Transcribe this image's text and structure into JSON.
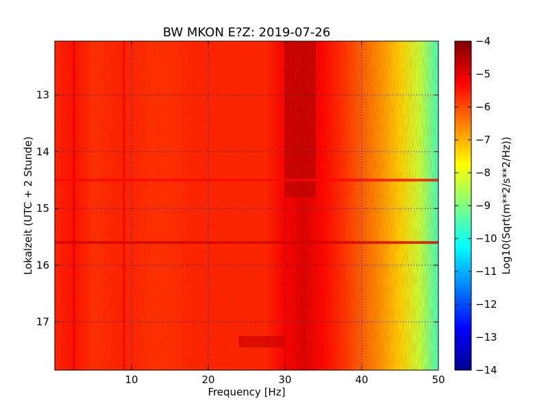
{
  "chart_data": {
    "type": "heatmap",
    "title": "BW MKON E?Z: 2019-07-26",
    "xlabel": "Frequency [Hz]",
    "ylabel": "Lokalzeit (UTC + 2 Stunde)",
    "colorbar_label": "Log10(Sqrt(m**2/s**2/Hz))",
    "colormap": "jet",
    "xlim": [
      0,
      50
    ],
    "ylim": [
      17.85,
      12.05
    ],
    "y_inverted": true,
    "x_ticks": [
      10,
      20,
      30,
      40,
      50
    ],
    "y_ticks": [
      13,
      14,
      15,
      16,
      17
    ],
    "color_range": [
      -14,
      -4
    ],
    "colorbar_ticks": [
      -4,
      -5,
      -6,
      -7,
      -8,
      -9,
      -10,
      -11,
      -12,
      -13,
      -14
    ],
    "grid": true,
    "grid_style": "dotted",
    "spectrum_profile": {
      "frequency_hz": [
        0,
        2.5,
        5,
        7.5,
        10,
        12.5,
        15,
        17.5,
        20,
        22.5,
        25,
        27.5,
        30,
        32.5,
        35,
        37.5,
        40,
        42.5,
        45,
        47.5,
        50
      ],
      "value": [
        -5.6,
        -5.4,
        -5.7,
        -5.6,
        -5.6,
        -5.7,
        -5.7,
        -5.6,
        -5.6,
        -5.6,
        -5.6,
        -5.6,
        -5.2,
        -4.9,
        -5.3,
        -5.7,
        -6.2,
        -6.7,
        -7.3,
        -8.3,
        -9.6
      ]
    },
    "features": [
      {
        "name": "broadband line",
        "frequency_hz": 2.5,
        "value": -5.0
      },
      {
        "name": "broadband line",
        "frequency_hz": 9.0,
        "value": -5.2
      },
      {
        "name": "high-level band",
        "frequency_range_hz": [
          30,
          34
        ],
        "time_range_h": [
          12.05,
          14.8
        ],
        "value": -4.6
      },
      {
        "name": "transient",
        "frequency_range_hz": [
          0,
          50
        ],
        "time_h": 15.6,
        "value": -4.8
      },
      {
        "name": "transient",
        "frequency_range_hz": [
          0,
          50
        ],
        "time_h": 14.5,
        "value": -5.3
      },
      {
        "name": "burst",
        "frequency_range_hz": [
          24,
          30
        ],
        "time_range_h": [
          17.25,
          17.45
        ],
        "value": -4.8
      }
    ]
  }
}
